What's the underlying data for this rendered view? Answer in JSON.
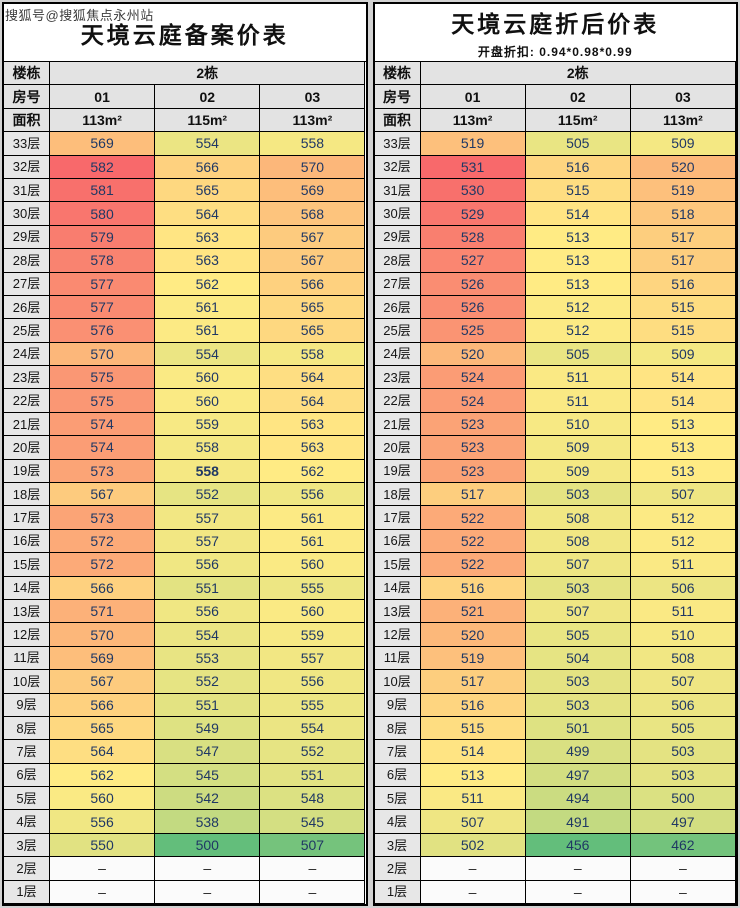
{
  "watermark": "搜狐号@搜狐焦点永州站",
  "heatmap_colors": {
    "low": "#63BE7B",
    "mid": "#FFEB84",
    "high": "#F8696B"
  },
  "chart_data": [
    {
      "type": "heatmap",
      "title": "天境云庭备案价表",
      "building_label": "楼栋",
      "building": "2栋",
      "room_label": "房号",
      "rooms": [
        "01",
        "02",
        "03"
      ],
      "area_label": "面积",
      "areas": [
        "113m²",
        "115m²",
        "113m²"
      ],
      "floors": [
        "33层",
        "32层",
        "31层",
        "30层",
        "29层",
        "28层",
        "27层",
        "26层",
        "25层",
        "24层",
        "23层",
        "22层",
        "21层",
        "20层",
        "19层",
        "18层",
        "17层",
        "16层",
        "15层",
        "14层",
        "13层",
        "12层",
        "11层",
        "10层",
        "9层",
        "8层",
        "7层",
        "6层",
        "5层",
        "4层",
        "3层",
        "2层",
        "1层"
      ],
      "values": [
        [
          569,
          554,
          558
        ],
        [
          582,
          566,
          570
        ],
        [
          581,
          565,
          569
        ],
        [
          580,
          564,
          568
        ],
        [
          579,
          563,
          567
        ],
        [
          578,
          563,
          567
        ],
        [
          577,
          562,
          566
        ],
        [
          577,
          561,
          565
        ],
        [
          576,
          561,
          565
        ],
        [
          570,
          554,
          558
        ],
        [
          575,
          560,
          564
        ],
        [
          575,
          560,
          564
        ],
        [
          574,
          559,
          563
        ],
        [
          574,
          558,
          563
        ],
        [
          573,
          558,
          562
        ],
        [
          567,
          552,
          556
        ],
        [
          573,
          557,
          561
        ],
        [
          572,
          557,
          561
        ],
        [
          572,
          556,
          560
        ],
        [
          566,
          551,
          555
        ],
        [
          571,
          556,
          560
        ],
        [
          570,
          554,
          559
        ],
        [
          569,
          553,
          557
        ],
        [
          567,
          552,
          556
        ],
        [
          566,
          551,
          555
        ],
        [
          565,
          549,
          554
        ],
        [
          564,
          547,
          552
        ],
        [
          562,
          545,
          551
        ],
        [
          560,
          542,
          548
        ],
        [
          556,
          538,
          545
        ],
        [
          550,
          500,
          507
        ],
        [
          "–",
          "–",
          "–"
        ],
        [
          "–",
          "–",
          "–"
        ]
      ],
      "bold_cell": [
        14,
        1
      ]
    },
    {
      "type": "heatmap",
      "title": "天境云庭折后价表",
      "subtitle": "开盘折扣: 0.94*0.98*0.99",
      "building_label": "楼栋",
      "building": "2栋",
      "room_label": "房号",
      "rooms": [
        "01",
        "02",
        "03"
      ],
      "area_label": "面积",
      "areas": [
        "113m²",
        "115m²",
        "113m²"
      ],
      "floors": [
        "33层",
        "32层",
        "31层",
        "30层",
        "29层",
        "28层",
        "27层",
        "26层",
        "25层",
        "24层",
        "23层",
        "22层",
        "21层",
        "20层",
        "19层",
        "18层",
        "17层",
        "16层",
        "15层",
        "14层",
        "13层",
        "12层",
        "11层",
        "10层",
        "9层",
        "8层",
        "7层",
        "6层",
        "5层",
        "4层",
        "3层",
        "2层",
        "1层"
      ],
      "values": [
        [
          519,
          505,
          509
        ],
        [
          531,
          516,
          520
        ],
        [
          530,
          515,
          519
        ],
        [
          529,
          514,
          518
        ],
        [
          528,
          513,
          517
        ],
        [
          527,
          513,
          517
        ],
        [
          526,
          513,
          516
        ],
        [
          526,
          512,
          515
        ],
        [
          525,
          512,
          515
        ],
        [
          520,
          505,
          509
        ],
        [
          524,
          511,
          514
        ],
        [
          524,
          511,
          514
        ],
        [
          523,
          510,
          513
        ],
        [
          523,
          509,
          513
        ],
        [
          523,
          509,
          513
        ],
        [
          517,
          503,
          507
        ],
        [
          522,
          508,
          512
        ],
        [
          522,
          508,
          512
        ],
        [
          522,
          507,
          511
        ],
        [
          516,
          503,
          506
        ],
        [
          521,
          507,
          511
        ],
        [
          520,
          505,
          510
        ],
        [
          519,
          504,
          508
        ],
        [
          517,
          503,
          507
        ],
        [
          516,
          503,
          506
        ],
        [
          515,
          501,
          505
        ],
        [
          514,
          499,
          503
        ],
        [
          513,
          497,
          503
        ],
        [
          511,
          494,
          500
        ],
        [
          507,
          491,
          497
        ],
        [
          502,
          456,
          462
        ],
        [
          "–",
          "–",
          "–"
        ],
        [
          "–",
          "–",
          "–"
        ]
      ]
    }
  ]
}
